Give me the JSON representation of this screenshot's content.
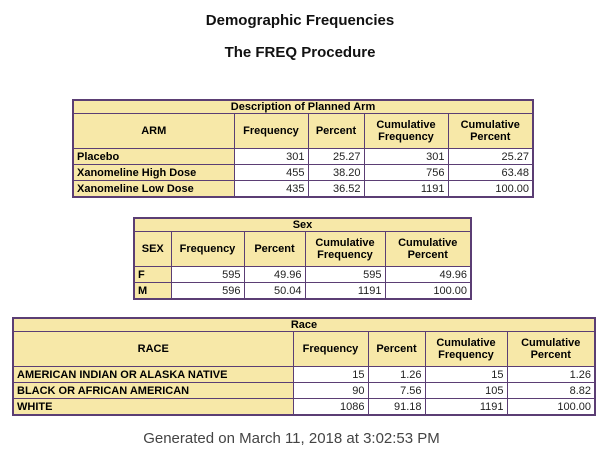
{
  "header": {
    "title": "Demographic Frequencies",
    "subtitle": "The FREQ Procedure"
  },
  "tables": [
    {
      "caption": "Description of Planned Arm",
      "columns": [
        "ARM",
        "Frequency",
        "Percent",
        "Cumulative Frequency",
        "Cumulative Percent"
      ],
      "rows": [
        [
          "Placebo",
          "301",
          "25.27",
          "301",
          "25.27"
        ],
        [
          "Xanomeline High Dose",
          "455",
          "38.20",
          "756",
          "63.48"
        ],
        [
          "Xanomeline Low Dose",
          "435",
          "36.52",
          "1191",
          "100.00"
        ]
      ]
    },
    {
      "caption": "Sex",
      "columns": [
        "SEX",
        "Frequency",
        "Percent",
        "Cumulative Frequency",
        "Cumulative Percent"
      ],
      "rows": [
        [
          "F",
          "595",
          "49.96",
          "595",
          "49.96"
        ],
        [
          "M",
          "596",
          "50.04",
          "1191",
          "100.00"
        ]
      ]
    },
    {
      "caption": "Race",
      "columns": [
        "RACE",
        "Frequency",
        "Percent",
        "Cumulative Frequency",
        "Cumulative Percent"
      ],
      "rows": [
        [
          "AMERICAN INDIAN OR ALASKA NATIVE",
          "15",
          "1.26",
          "15",
          "1.26"
        ],
        [
          "BLACK OR AFRICAN AMERICAN",
          "90",
          "7.56",
          "105",
          "8.82"
        ],
        [
          "WHITE",
          "1086",
          "91.18",
          "1191",
          "100.00"
        ]
      ]
    }
  ],
  "footer": {
    "text": "Generated on March 11, 2018 at 3:02:53 PM"
  }
}
